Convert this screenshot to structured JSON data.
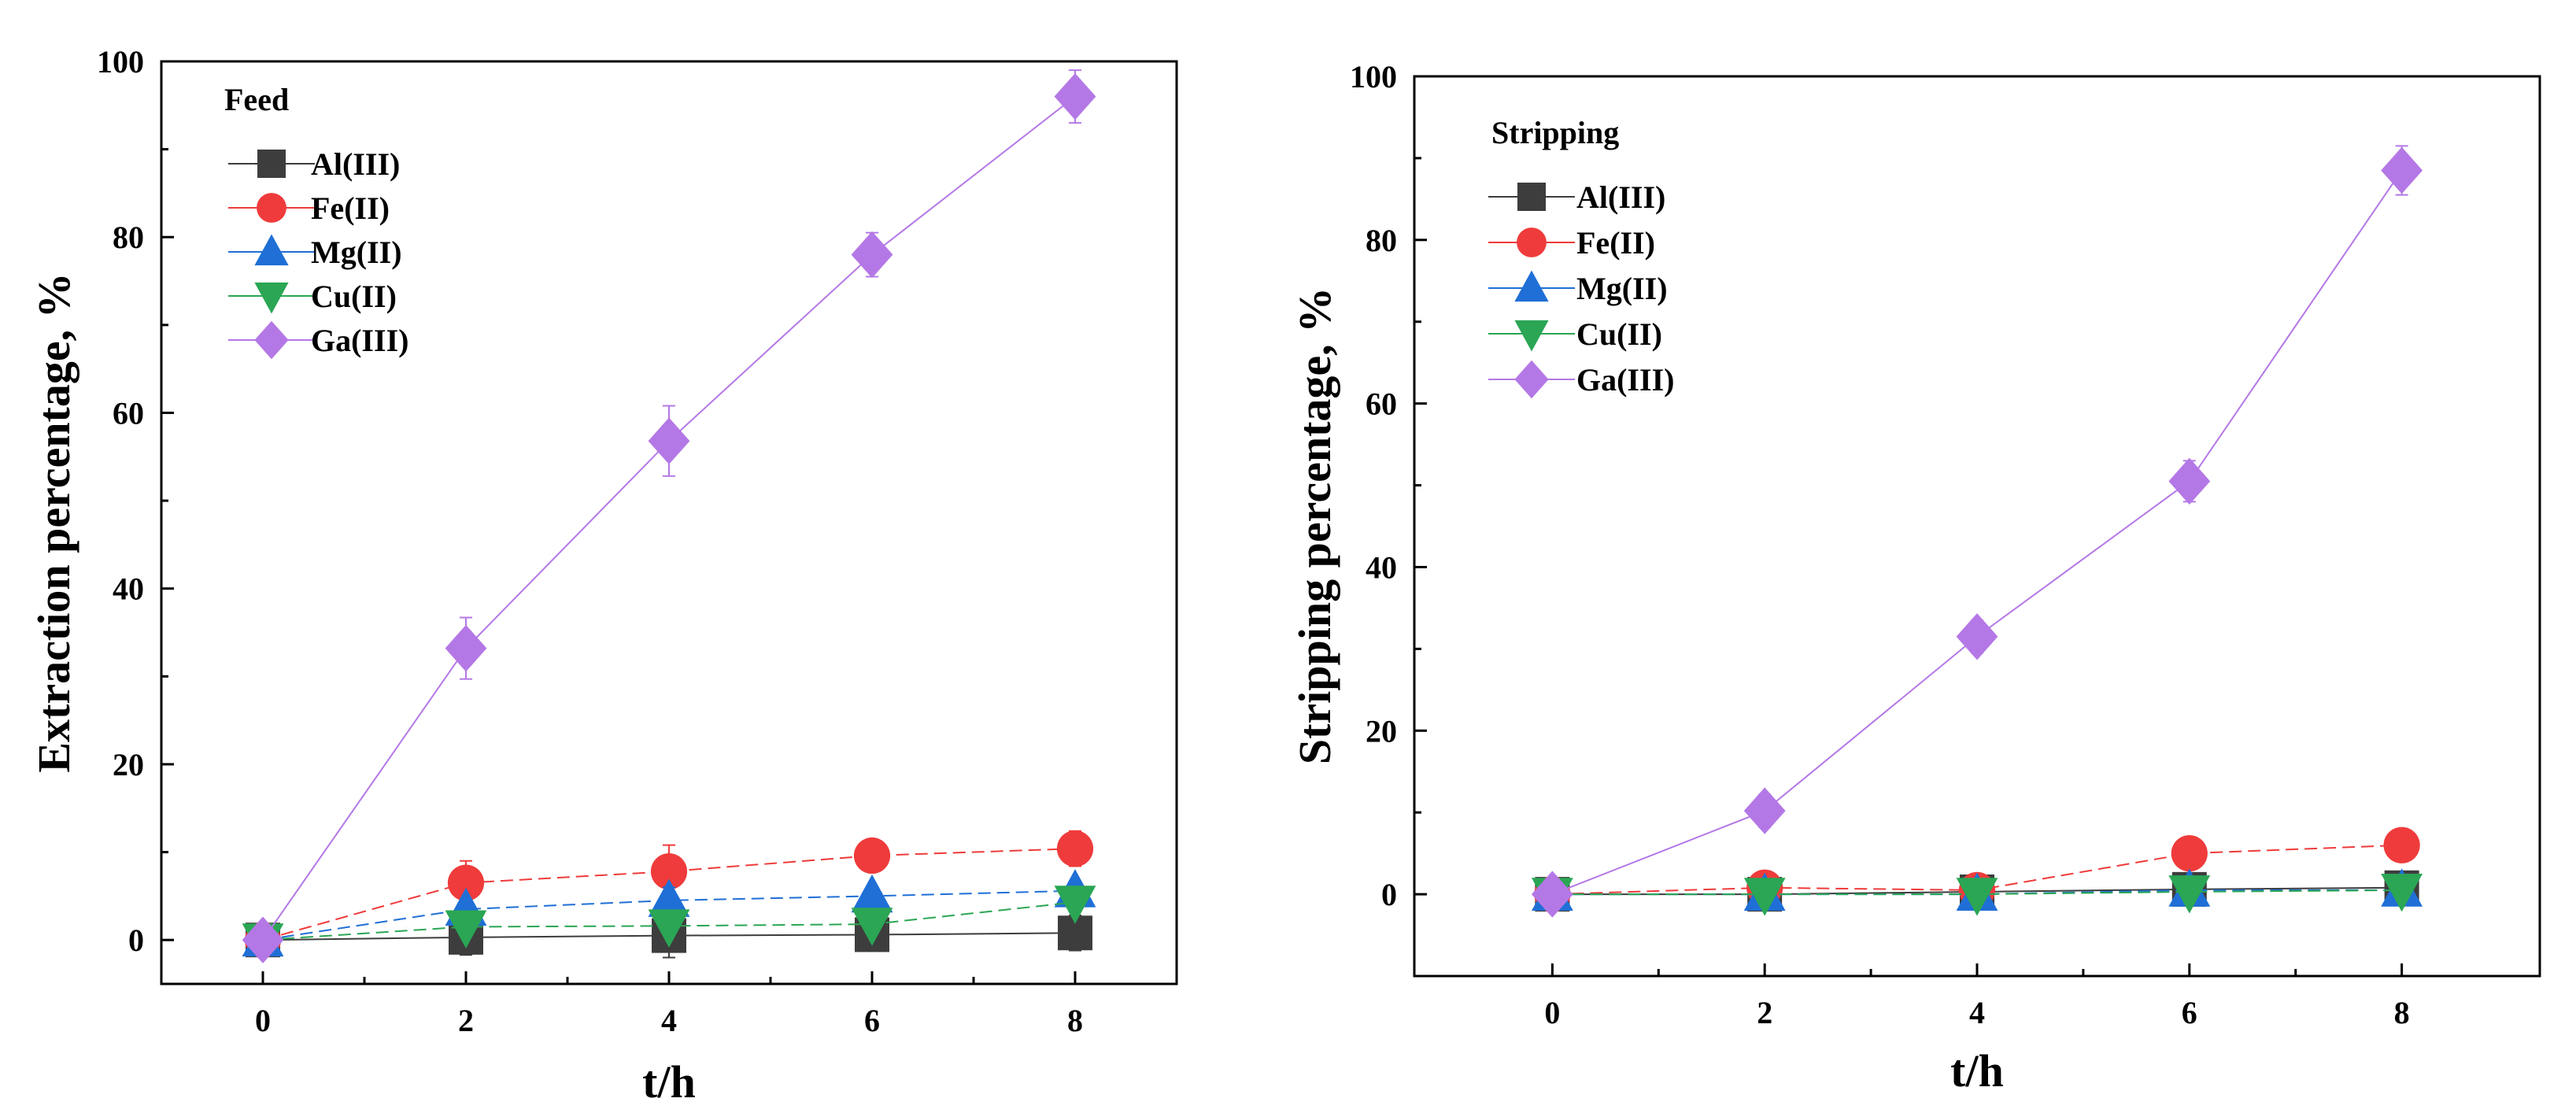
{
  "chart_data": [
    {
      "type": "line",
      "title": "",
      "xlabel": "t/h",
      "ylabel": "Extraction percentage, %",
      "xlim": [
        -1,
        9
      ],
      "ylim": [
        -5,
        100
      ],
      "xticks": [
        0,
        2,
        4,
        6,
        8
      ],
      "yticks": [
        0,
        20,
        40,
        60,
        80,
        100
      ],
      "grid": false,
      "legend_title": "Feed",
      "legend_position": "top-left",
      "x": [
        0,
        2,
        4,
        6,
        8
      ],
      "series": [
        {
          "name": "Al(III)",
          "marker": "square",
          "color": "#3d3d3d",
          "values": [
            0,
            0.3,
            0.5,
            0.6,
            0.8
          ],
          "errors": [
            0.3,
            2.0,
            2.5,
            1.5,
            2.0
          ]
        },
        {
          "name": "Fe(II)",
          "marker": "circle",
          "color": "#ef3b3b",
          "values": [
            0,
            6.5,
            7.8,
            9.6,
            10.4
          ],
          "errors": [
            0.3,
            2.5,
            3.0,
            1.0,
            2.0
          ]
        },
        {
          "name": "Mg(II)",
          "marker": "triangle-up",
          "color": "#1f6fd6",
          "values": [
            0,
            3.5,
            4.5,
            5.0,
            5.6
          ],
          "errors": [
            0.3,
            1.0,
            1.5,
            1.0,
            1.0
          ]
        },
        {
          "name": "Cu(II)",
          "marker": "triangle-down",
          "color": "#2aa654",
          "values": [
            0,
            1.5,
            1.6,
            1.8,
            4.3
          ],
          "errors": [
            0.3,
            1.0,
            1.0,
            1.0,
            1.0
          ]
        },
        {
          "name": "Ga(III)",
          "marker": "diamond",
          "color": "#b478e6",
          "values": [
            0,
            33.2,
            56.8,
            78.0,
            96.0
          ],
          "errors": [
            0.5,
            3.5,
            4.0,
            2.5,
            3.0
          ]
        }
      ]
    },
    {
      "type": "line",
      "title": "",
      "xlabel": "t/h",
      "ylabel": "Stripping percentage, %",
      "xlim": [
        -1.3,
        9.3
      ],
      "ylim": [
        -10,
        100
      ],
      "xticks": [
        0,
        2,
        4,
        6,
        8
      ],
      "yticks": [
        0,
        20,
        40,
        60,
        80,
        100
      ],
      "grid": false,
      "legend_title": "Stripping",
      "legend_position": "top-left",
      "x": [
        0,
        2,
        4,
        6,
        8
      ],
      "series": [
        {
          "name": "Al(III)",
          "marker": "square",
          "color": "#3d3d3d",
          "values": [
            0,
            0,
            0.3,
            0.6,
            0.8
          ],
          "errors": [
            0.3,
            0.5,
            0.5,
            0.5,
            0.5
          ]
        },
        {
          "name": "Fe(II)",
          "marker": "circle",
          "color": "#ef3b3b",
          "values": [
            0,
            0.8,
            0.5,
            5.0,
            6.0
          ],
          "errors": [
            0.3,
            0.5,
            0.5,
            2.0,
            2.0
          ]
        },
        {
          "name": "Mg(II)",
          "marker": "triangle-up",
          "color": "#1f6fd6",
          "values": [
            0,
            0,
            0,
            0.5,
            0.5
          ],
          "errors": [
            0.3,
            0.3,
            0.3,
            0.3,
            0.3
          ]
        },
        {
          "name": "Cu(II)",
          "marker": "triangle-down",
          "color": "#2aa654",
          "values": [
            0,
            0,
            0,
            0.3,
            0.5
          ],
          "errors": [
            0.3,
            0.3,
            0.3,
            0.3,
            0.3
          ]
        },
        {
          "name": "Ga(III)",
          "marker": "diamond",
          "color": "#b478e6",
          "values": [
            0,
            10.2,
            31.5,
            50.5,
            88.5
          ],
          "errors": [
            0.5,
            2.0,
            2.0,
            2.5,
            3.0
          ]
        }
      ]
    }
  ]
}
